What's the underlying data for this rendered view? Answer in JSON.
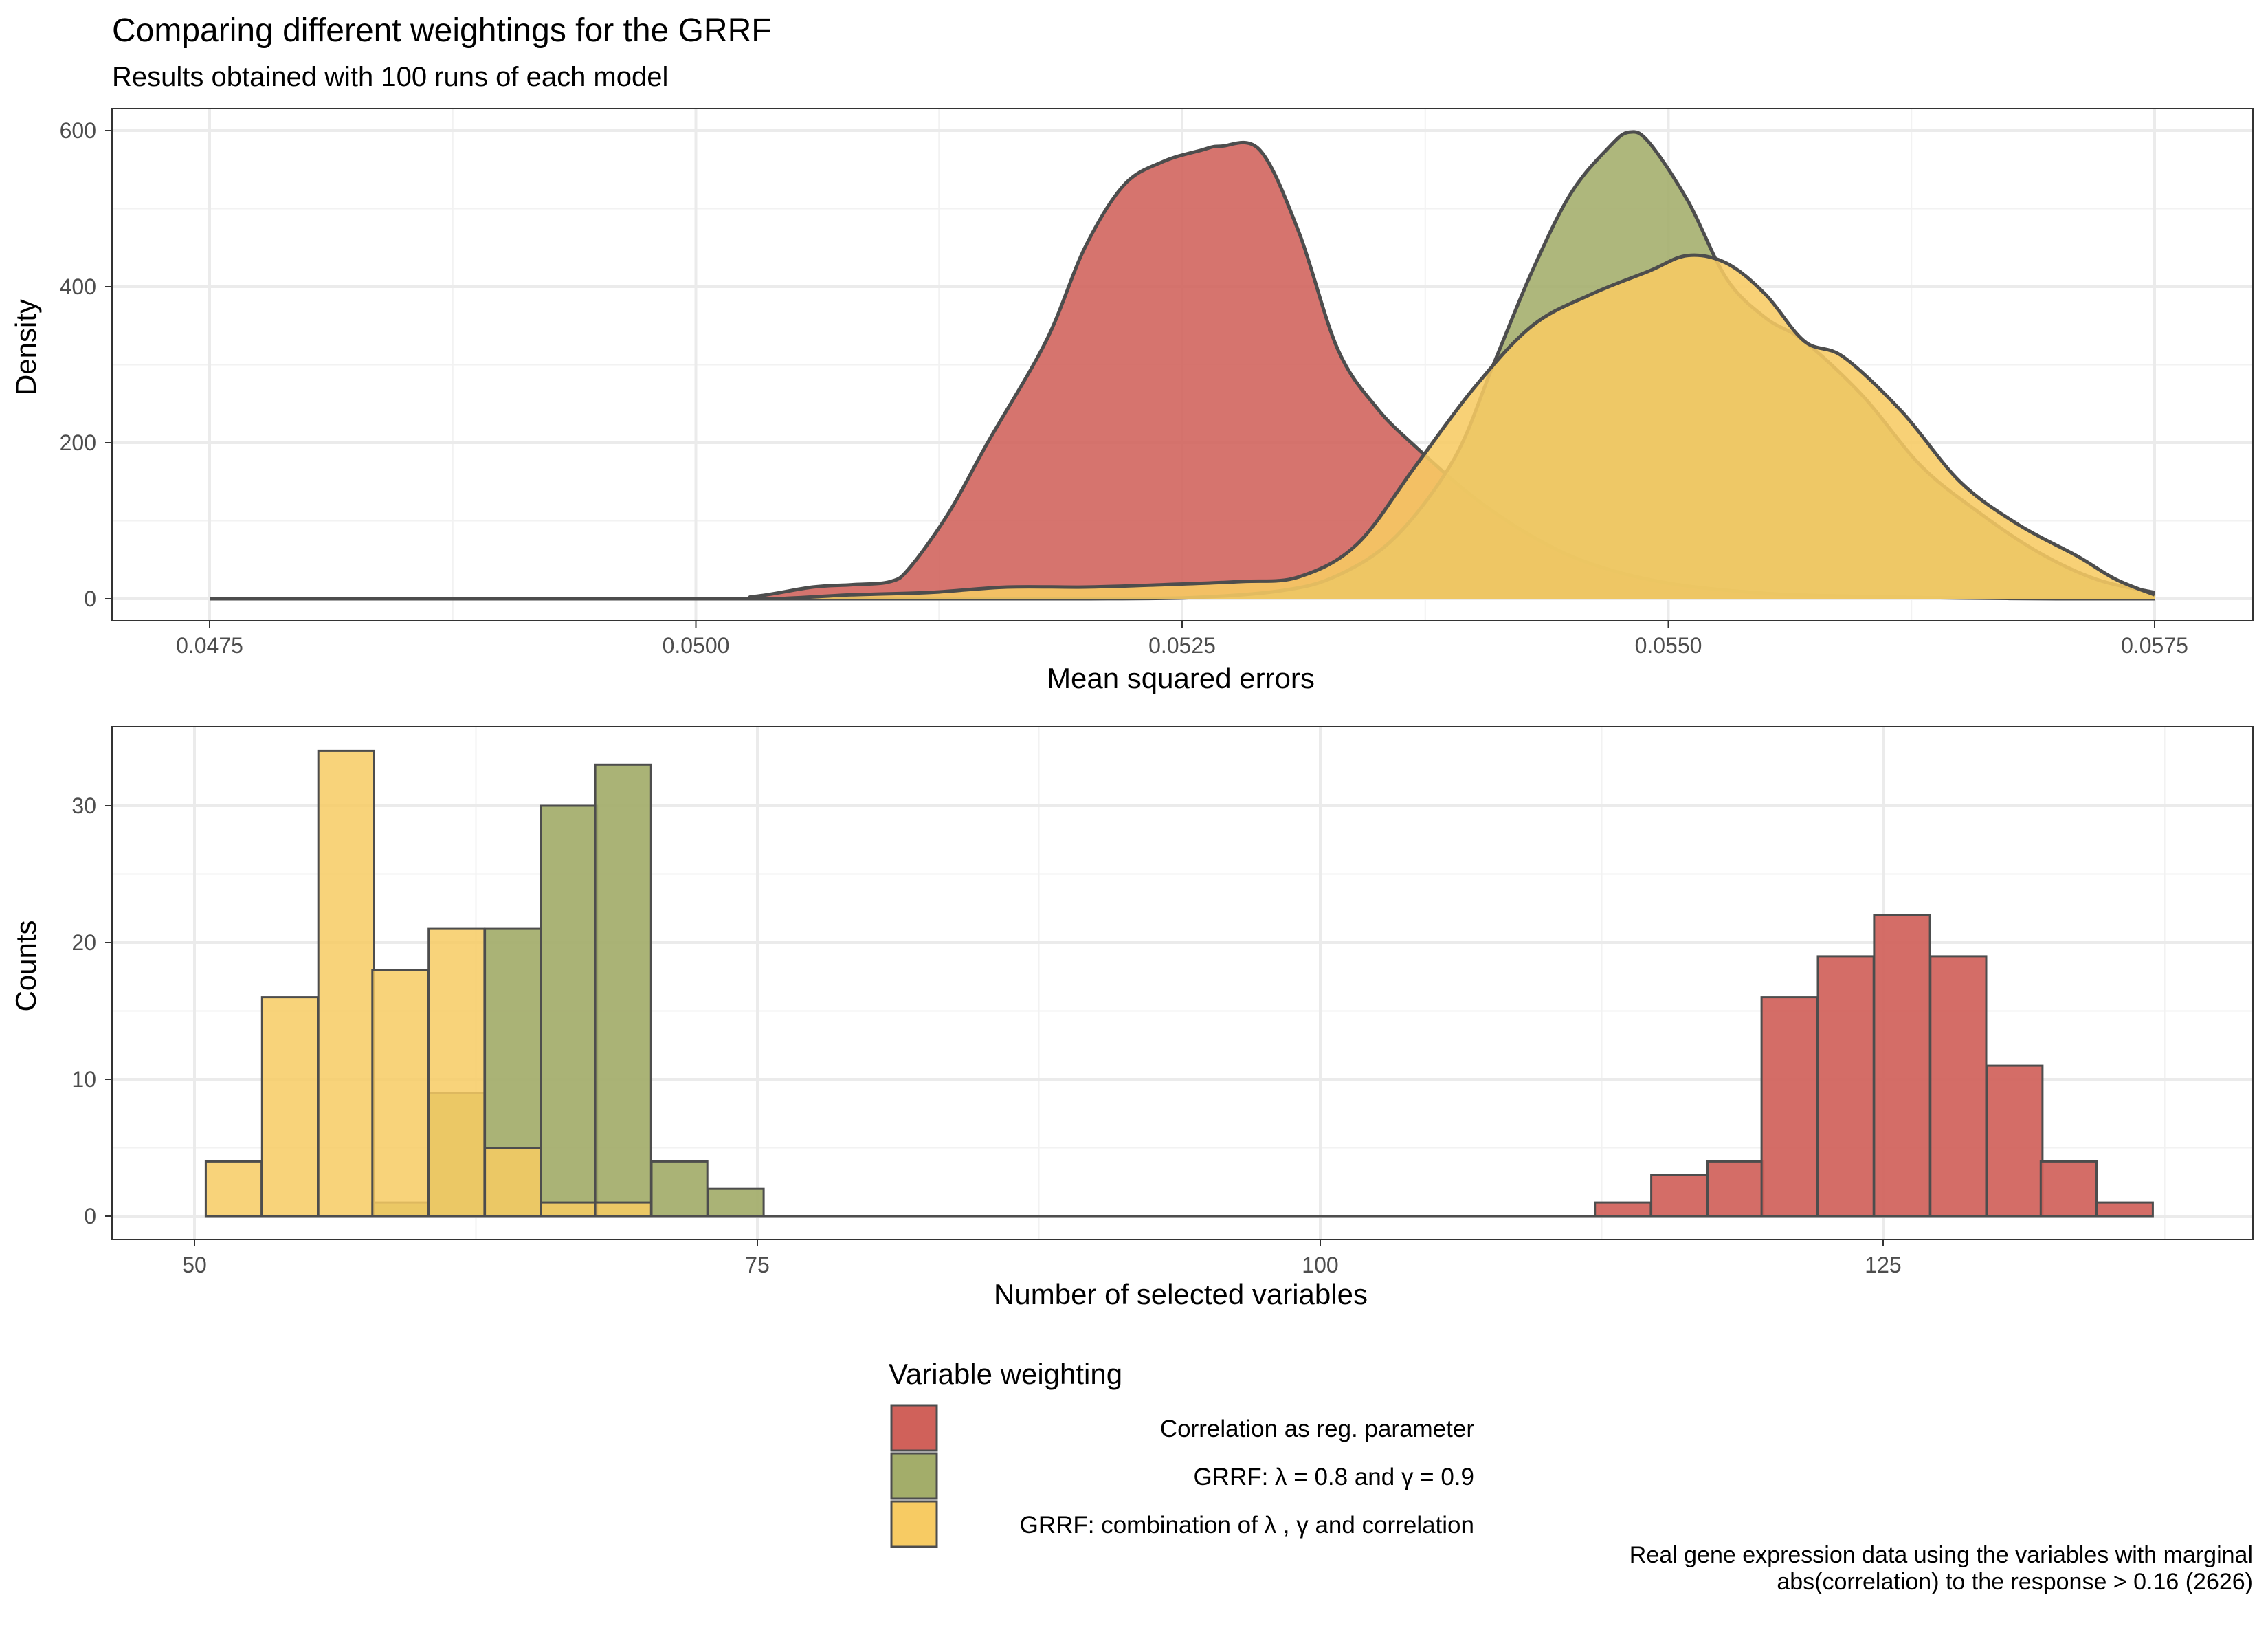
{
  "title": "Comparing different weightings for the GRRF",
  "subtitle": "Results obtained with 100 runs of each model",
  "caption": [
    "Real gene expression data using the variables with marginal",
    "abs(correlation) to the response > 0.16 (2626)"
  ],
  "colors": {
    "red": "#d0615a",
    "green": "#a3ad6a",
    "yellow": "#f7cb63",
    "outline": "#4d4d4d"
  },
  "legend": {
    "title": "Variable weighting",
    "items": [
      {
        "label": "Correlation as reg. parameter",
        "color": "#d0615a"
      },
      {
        "label": "GRRF: λ = 0.8 and γ = 0.9",
        "color": "#a3ad6a"
      },
      {
        "label": "GRRF: combination of  λ ,  γ  and correlation",
        "color": "#f7cb63"
      }
    ]
  },
  "chart_data": [
    {
      "type": "area",
      "xlabel": "Mean squared errors",
      "ylabel": "Density",
      "xlim": [
        0.0475,
        0.0575
      ],
      "ylim": [
        0,
        600
      ],
      "x_ticks": [
        "0.0475",
        "0.0500",
        "0.0525",
        "0.0550",
        "0.0575"
      ],
      "y_ticks": [
        "0",
        "200",
        "400",
        "600"
      ],
      "grid": true,
      "series": [
        {
          "color": "#d0615a",
          "x": [
            0.0475,
            0.05,
            0.0503,
            0.0506,
            0.0508,
            0.051,
            0.0511,
            0.0513,
            0.0515,
            0.0518,
            0.052,
            0.0522,
            0.0524,
            0.0526,
            0.0527,
            0.0529,
            0.0531,
            0.0533,
            0.0535,
            0.0537,
            0.054,
            0.0543,
            0.0546,
            0.055,
            0.0555,
            0.056,
            0.0565,
            0.057,
            0.0575
          ],
          "y": [
            0,
            0,
            3,
            15,
            18,
            22,
            40,
            110,
            200,
            330,
            450,
            530,
            560,
            575,
            580,
            575,
            470,
            320,
            245,
            195,
            130,
            80,
            45,
            20,
            7,
            3,
            1,
            0,
            0
          ]
        },
        {
          "color": "#a3ad6a",
          "x": [
            0.0475,
            0.05,
            0.0505,
            0.051,
            0.0515,
            0.052,
            0.0525,
            0.053,
            0.0533,
            0.0536,
            0.0539,
            0.0541,
            0.0543,
            0.0545,
            0.0547,
            0.0548,
            0.0549,
            0.0551,
            0.0553,
            0.0555,
            0.0557,
            0.056,
            0.0563,
            0.0566,
            0.0569,
            0.0572,
            0.0575
          ],
          "y": [
            0,
            0,
            0,
            0,
            0,
            0,
            1,
            10,
            30,
            80,
            180,
            300,
            420,
            520,
            580,
            598,
            585,
            510,
            410,
            360,
            330,
            260,
            170,
            110,
            60,
            25,
            8
          ]
        },
        {
          "color": "#f7cb63",
          "x": [
            0.0475,
            0.05,
            0.0504,
            0.0508,
            0.0512,
            0.0516,
            0.052,
            0.0524,
            0.0528,
            0.0531,
            0.0534,
            0.0537,
            0.054,
            0.0543,
            0.0546,
            0.0549,
            0.0551,
            0.0553,
            0.0555,
            0.0557,
            0.0559,
            0.0562,
            0.0565,
            0.0568,
            0.0571,
            0.0573,
            0.0575
          ],
          "y": [
            0,
            0,
            0,
            5,
            8,
            15,
            15,
            18,
            22,
            28,
            70,
            170,
            270,
            350,
            390,
            420,
            440,
            430,
            390,
            330,
            310,
            240,
            150,
            95,
            55,
            25,
            5
          ]
        }
      ]
    },
    {
      "type": "bar",
      "xlabel": "Number of selected variables",
      "ylabel": "Counts",
      "xlim": [
        48.5,
        139.5
      ],
      "ylim": [
        0,
        35
      ],
      "x_ticks": [
        "50",
        "75",
        "100",
        "125"
      ],
      "y_ticks": [
        "0",
        "10",
        "20",
        "30"
      ],
      "grid": true,
      "bin_width": 2.48,
      "series": [
        {
          "color": "#a3ad6a",
          "bins": [
            [
              57.9,
              1
            ],
            [
              60.4,
              9
            ],
            [
              62.9,
              21
            ],
            [
              65.4,
              30
            ],
            [
              67.8,
              33
            ],
            [
              70.3,
              4
            ],
            [
              72.8,
              2
            ]
          ]
        },
        {
          "color": "#d0615a",
          "bins": [
            [
              112.2,
              1
            ],
            [
              114.7,
              3
            ],
            [
              117.2,
              4
            ],
            [
              119.6,
              16
            ],
            [
              122.1,
              19
            ],
            [
              124.6,
              22
            ],
            [
              127.1,
              19
            ],
            [
              129.6,
              11
            ],
            [
              132.0,
              4
            ],
            [
              134.5,
              1
            ]
          ]
        },
        {
          "color": "#f7cb63",
          "bins": [
            [
              50.5,
              4
            ],
            [
              53.0,
              16
            ],
            [
              55.5,
              34
            ],
            [
              57.9,
              18
            ],
            [
              60.4,
              21
            ],
            [
              62.9,
              5
            ],
            [
              65.4,
              1
            ],
            [
              67.8,
              1
            ]
          ]
        }
      ]
    }
  ]
}
